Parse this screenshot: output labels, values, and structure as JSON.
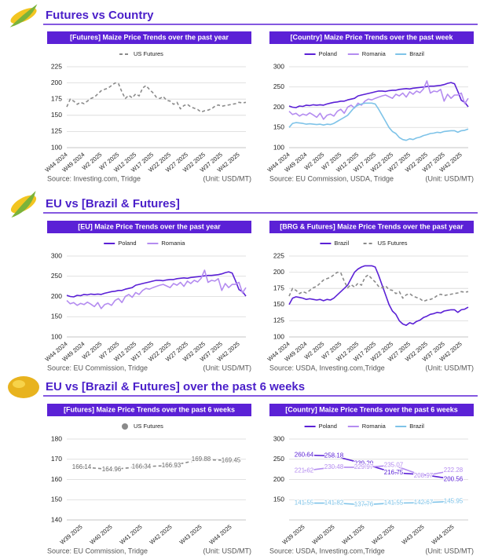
{
  "sections": [
    {
      "title": "Futures vs Country"
    },
    {
      "title": "EU vs [Brazil & Futures]"
    },
    {
      "title": "EU vs [Brazil & Futures] over the past 6 weeks"
    }
  ],
  "chart_data": [
    {
      "type": "line",
      "title": "[Futures] Maize Price Trends over the past year",
      "source": "Source: Investing.com, Tridge",
      "unit": "(Unit: USD/MT)",
      "categories": [
        "W44 2024",
        null,
        null,
        null,
        null,
        "W49 2024",
        null,
        null,
        null,
        null,
        "W2 2025",
        null,
        null,
        null,
        null,
        "W7 2025",
        null,
        null,
        null,
        null,
        "W12 2025",
        null,
        null,
        null,
        null,
        "W17 2025",
        null,
        null,
        null,
        null,
        "W22 2025",
        null,
        null,
        null,
        null,
        "W27 2025",
        null,
        null,
        null,
        null,
        "W32 2025",
        null,
        null,
        null,
        null,
        "W37 2025",
        null,
        null,
        null,
        null,
        "W42 2025",
        null,
        null
      ],
      "series": [
        {
          "name": "US Futures",
          "color": "#8a8a8a",
          "dashed": true,
          "values": [
            163,
            175,
            172,
            167,
            170,
            168,
            172,
            176,
            178,
            183,
            188,
            190,
            192,
            196,
            200,
            199,
            186,
            176,
            181,
            177,
            183,
            180,
            192,
            196,
            190,
            185,
            178,
            176,
            179,
            173,
            172,
            167,
            170,
            160,
            165,
            167,
            163,
            161,
            159,
            155,
            157,
            158,
            160,
            164,
            166,
            164,
            165,
            166,
            167,
            168,
            170,
            169,
            170
          ]
        }
      ],
      "ylim": [
        100,
        225
      ],
      "yticks": [
        100,
        125,
        150,
        175,
        200,
        225
      ],
      "grid": true
    },
    {
      "type": "line",
      "title": "[Country] Maize Price Trends over the past week",
      "source": "Source: EU Commission, USDA, Tridge",
      "unit": "(Unit: USD/MT)",
      "categories": [
        "W44 2024",
        null,
        null,
        null,
        null,
        "W49 2024",
        null,
        null,
        null,
        null,
        "W2 2025",
        null,
        null,
        null,
        null,
        "W7 2025",
        null,
        null,
        null,
        null,
        "W12 2025",
        null,
        null,
        null,
        null,
        "W17 2025",
        null,
        null,
        null,
        null,
        "W22 2025",
        null,
        null,
        null,
        null,
        "W27 2025",
        null,
        null,
        null,
        null,
        "W32 2025",
        null,
        null,
        null,
        null,
        "W37 2025",
        null,
        null,
        null,
        null,
        "W42 2025",
        null,
        null
      ],
      "series": [
        {
          "name": "Poland",
          "color": "#5b21d6",
          "values": [
            203,
            200,
            199,
            203,
            202,
            205,
            204,
            206,
            205,
            206,
            205,
            208,
            210,
            212,
            213,
            215,
            215,
            218,
            220,
            222,
            228,
            230,
            232,
            234,
            236,
            238,
            240,
            240,
            239,
            241,
            242,
            242,
            244,
            245,
            246,
            245,
            247,
            248,
            249,
            250,
            251,
            252,
            252,
            253,
            254,
            256,
            259,
            261,
            258,
            239,
            217,
            212,
            201
          ]
        },
        {
          "name": "Romania",
          "color": "#b48cf0",
          "values": [
            190,
            182,
            185,
            178,
            183,
            180,
            186,
            181,
            175,
            185,
            170,
            180,
            183,
            178,
            190,
            195,
            185,
            200,
            205,
            198,
            210,
            205,
            215,
            220,
            218,
            222,
            225,
            228,
            230,
            226,
            222,
            232,
            228,
            235,
            225,
            238,
            232,
            240,
            236,
            245,
            265,
            235,
            240,
            238,
            244,
            215,
            232,
            222,
            230,
            230,
            235,
            209,
            222
          ]
        },
        {
          "name": "Brazil",
          "color": "#7ec3e8",
          "values": [
            150,
            160,
            162,
            161,
            160,
            158,
            159,
            158,
            157,
            158,
            156,
            158,
            157,
            160,
            165,
            170,
            175,
            180,
            190,
            200,
            205,
            208,
            210,
            210,
            210,
            208,
            195,
            180,
            165,
            150,
            140,
            135,
            125,
            120,
            118,
            122,
            120,
            124,
            126,
            130,
            132,
            135,
            136,
            138,
            137,
            140,
            141,
            142,
            142,
            138,
            142,
            143,
            146
          ]
        }
      ],
      "ylim": [
        100,
        300
      ],
      "yticks": [
        100,
        150,
        200,
        250,
        300
      ],
      "grid": true
    },
    {
      "type": "line",
      "title": "[EU] Maize Price Trends over the past year",
      "source": "Source: EU Commission, Tridge",
      "unit": "(Unit: USD/MT)",
      "categories": [
        "W44 2024",
        null,
        null,
        null,
        null,
        "W49 2024",
        null,
        null,
        null,
        null,
        "W2 2025",
        null,
        null,
        null,
        null,
        "W7 2025",
        null,
        null,
        null,
        null,
        "W12 2025",
        null,
        null,
        null,
        null,
        "W17 2025",
        null,
        null,
        null,
        null,
        "W22 2025",
        null,
        null,
        null,
        null,
        "W27 2025",
        null,
        null,
        null,
        null,
        "W32 2025",
        null,
        null,
        null,
        null,
        "W37 2025",
        null,
        null,
        null,
        null,
        "W42 2025",
        null,
        null
      ],
      "series": [
        {
          "name": "Poland",
          "color": "#5b21d6",
          "values": [
            203,
            200,
            199,
            203,
            202,
            205,
            204,
            206,
            205,
            206,
            205,
            208,
            210,
            212,
            213,
            215,
            215,
            218,
            220,
            222,
            228,
            230,
            232,
            234,
            236,
            238,
            240,
            240,
            239,
            241,
            242,
            242,
            244,
            245,
            246,
            245,
            247,
            248,
            249,
            250,
            251,
            252,
            252,
            253,
            254,
            256,
            259,
            261,
            258,
            239,
            217,
            212,
            201
          ]
        },
        {
          "name": "Romania",
          "color": "#b48cf0",
          "values": [
            190,
            182,
            185,
            178,
            183,
            180,
            186,
            181,
            175,
            185,
            170,
            180,
            183,
            178,
            190,
            195,
            185,
            200,
            205,
            198,
            210,
            205,
            215,
            220,
            218,
            222,
            225,
            228,
            230,
            226,
            222,
            232,
            228,
            235,
            225,
            238,
            232,
            240,
            236,
            245,
            265,
            235,
            240,
            238,
            244,
            215,
            232,
            222,
            230,
            230,
            235,
            209,
            222
          ]
        }
      ],
      "ylim": [
        100,
        300
      ],
      "yticks": [
        100,
        150,
        200,
        250,
        300
      ],
      "grid": true
    },
    {
      "type": "line",
      "title": "[BRG & Futures] Maize Price Trends over the past year",
      "source": "Source: USDA, Investing.com,Tridge",
      "unit": "(Unit: USD/MT)",
      "categories": [
        "W44 2024",
        null,
        null,
        null,
        null,
        "W49 2024",
        null,
        null,
        null,
        null,
        "W2 2025",
        null,
        null,
        null,
        null,
        "W7 2025",
        null,
        null,
        null,
        null,
        "W12 2025",
        null,
        null,
        null,
        null,
        "W17 2025",
        null,
        null,
        null,
        null,
        "W22 2025",
        null,
        null,
        null,
        null,
        "W27 2025",
        null,
        null,
        null,
        null,
        "W32 2025",
        null,
        null,
        null,
        null,
        "W37 2025",
        null,
        null,
        null,
        null,
        "W42 2025",
        null,
        null
      ],
      "series": [
        {
          "name": "Brazil",
          "color": "#5b21d6",
          "values": [
            150,
            160,
            162,
            161,
            160,
            158,
            159,
            158,
            157,
            158,
            156,
            158,
            157,
            160,
            165,
            170,
            175,
            180,
            190,
            200,
            205,
            208,
            210,
            210,
            210,
            208,
            195,
            180,
            165,
            150,
            140,
            135,
            125,
            120,
            118,
            122,
            120,
            124,
            126,
            130,
            132,
            135,
            136,
            138,
            137,
            140,
            141,
            142,
            142,
            138,
            142,
            143,
            146
          ]
        },
        {
          "name": "US Futures",
          "color": "#8a8a8a",
          "dashed": true,
          "values": [
            163,
            175,
            172,
            167,
            170,
            168,
            172,
            176,
            178,
            183,
            188,
            190,
            192,
            196,
            200,
            199,
            186,
            176,
            181,
            177,
            183,
            180,
            192,
            196,
            190,
            185,
            178,
            176,
            179,
            173,
            172,
            167,
            170,
            160,
            165,
            167,
            163,
            161,
            159,
            155,
            157,
            158,
            160,
            164,
            166,
            164,
            165,
            166,
            167,
            168,
            170,
            169,
            170
          ]
        }
      ],
      "ylim": [
        100,
        225
      ],
      "yticks": [
        100,
        125,
        150,
        175,
        200,
        225
      ],
      "grid": true
    },
    {
      "type": "line",
      "title": "[Futures] Maize Price Trends over the past 6 weeks",
      "source": "Source: EU Commission, Tridge",
      "unit": "(Unit: USD/MT)",
      "categories": [
        "W39 2025",
        "W40 2025",
        "W41 2025",
        "W42 2025",
        "W43 2025",
        "W44 2025"
      ],
      "band": true,
      "markers": true,
      "data_labels": true,
      "series": [
        {
          "name": "US Futures",
          "color": "#8a8a8a",
          "dashed": true,
          "values": [
            166.14,
            164.96,
            166.34,
            166.93,
            169.88,
            169.45
          ]
        }
      ],
      "ylim": [
        140,
        180
      ],
      "yticks": [
        140,
        150,
        160,
        170,
        180
      ],
      "grid": true
    },
    {
      "type": "line",
      "title": "[Country] Maize Price Trends over the past 6 weeks",
      "source": "Source: USDA, Investing.com,Tridge",
      "unit": "(Unit: USD/MT)",
      "categories": [
        "W39 2025",
        "W40 2025",
        "W41 2025",
        "W42 2025",
        "W43 2025",
        "W44 2025"
      ],
      "band": true,
      "data_labels": true,
      "series": [
        {
          "name": "Poland",
          "color": "#5b21d6",
          "values": [
            260.64,
            258.18,
            239.2,
            216.75,
            212,
            200.56
          ],
          "value_labels": [
            "260.64",
            "258.18",
            "239.20",
            "216.75",
            null,
            "200.56"
          ]
        },
        {
          "name": "Romania",
          "color": "#b48cf0",
          "values": [
            221.62,
            230.48,
            229.97,
            235.07,
            208.97,
            222.28
          ]
        },
        {
          "name": "Brazil",
          "color": "#7ec3e8",
          "values": [
            141.55,
            141.82,
            137.76,
            141.55,
            142.67,
            145.95
          ]
        }
      ],
      "ylim": [
        100,
        300
      ],
      "yticks": [
        150,
        200,
        250,
        300
      ],
      "grid": true
    }
  ]
}
